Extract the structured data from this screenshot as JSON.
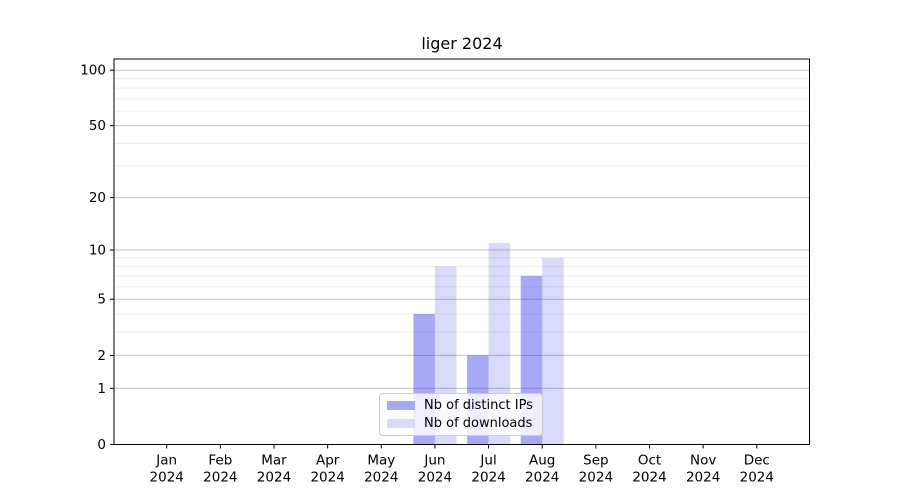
{
  "chart_data": {
    "type": "bar",
    "title": "liger 2024",
    "year_label": "2024",
    "categories": [
      "Jan",
      "Feb",
      "Mar",
      "Apr",
      "May",
      "Jun",
      "Jul",
      "Aug",
      "Sep",
      "Oct",
      "Nov",
      "Dec"
    ],
    "series": [
      {
        "name": "Nb of distinct IPs",
        "values": [
          0,
          0,
          0,
          0,
          0,
          4,
          2,
          7,
          0,
          0,
          0,
          0
        ],
        "fill": "rgba(6,6,232,0.35)",
        "legend_color": "#a8a8f7"
      },
      {
        "name": "Nb of downloads",
        "values": [
          0,
          0,
          0,
          0,
          0,
          8,
          11,
          9,
          0,
          0,
          0,
          0
        ],
        "fill": "rgba(2,2,215,0.15)",
        "legend_color": "#d9d9f9"
      }
    ],
    "yscale": "log1p",
    "ylim": [
      0,
      115
    ],
    "y_ticks": [
      0,
      1,
      2,
      5,
      10,
      20,
      50,
      100
    ],
    "y_minor_ticks": [
      3,
      4,
      6,
      7,
      8,
      9,
      30,
      40,
      60,
      70,
      80,
      90
    ],
    "grid": true,
    "legend_position": "lower center",
    "colors": {
      "major_grid": "#c2c2c2",
      "minor_grid": "#ededed",
      "spine": "#000000"
    }
  }
}
